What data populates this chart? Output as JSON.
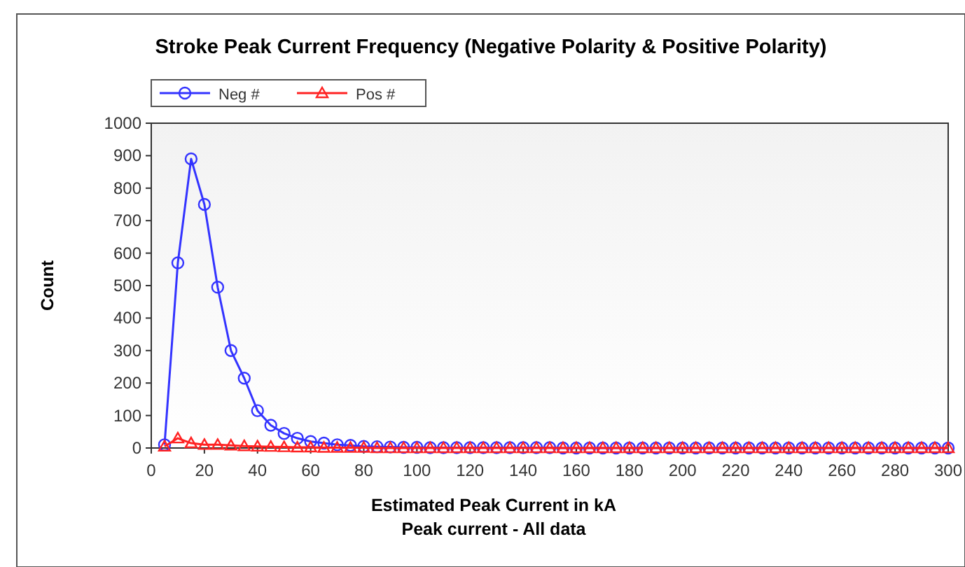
{
  "chart_data": {
    "type": "line",
    "title": "Stroke Peak Current Frequency (Negative Polarity & Positive Polarity)",
    "xlabel": "Estimated Peak Current in kA",
    "ylabel": "Count",
    "annotations": [
      "Peak current - All data"
    ],
    "x": [
      5,
      10,
      15,
      20,
      25,
      30,
      35,
      40,
      45,
      50,
      55,
      60,
      65,
      70,
      75,
      80,
      85,
      90,
      95,
      100,
      105,
      110,
      115,
      120,
      125,
      130,
      135,
      140,
      145,
      150,
      155,
      160,
      165,
      170,
      175,
      180,
      185,
      190,
      195,
      200,
      205,
      210,
      215,
      220,
      225,
      230,
      235,
      240,
      245,
      250,
      255,
      260,
      265,
      270,
      275,
      280,
      285,
      290,
      295,
      300
    ],
    "series": [
      {
        "name": "Neg #",
        "color": "#3333ff",
        "marker": "circle",
        "values": [
          10,
          570,
          890,
          750,
          495,
          300,
          215,
          115,
          70,
          45,
          30,
          20,
          15,
          10,
          8,
          5,
          4,
          3,
          2,
          2,
          1,
          1,
          1,
          1,
          1,
          1,
          1,
          1,
          1,
          1,
          0,
          0,
          0,
          0,
          0,
          0,
          0,
          0,
          0,
          0,
          0,
          0,
          0,
          0,
          0,
          0,
          0,
          0,
          0,
          0,
          0,
          0,
          0,
          0,
          0,
          0,
          0,
          0,
          0,
          0
        ]
      },
      {
        "name": "Pos #",
        "color": "#ff2222",
        "marker": "triangle",
        "values": [
          5,
          30,
          15,
          10,
          10,
          8,
          6,
          5,
          4,
          3,
          2,
          2,
          1,
          1,
          1,
          1,
          0,
          0,
          0,
          0,
          0,
          0,
          0,
          0,
          0,
          0,
          0,
          0,
          0,
          0,
          0,
          0,
          0,
          0,
          0,
          0,
          0,
          0,
          0,
          0,
          0,
          0,
          0,
          0,
          0,
          0,
          0,
          0,
          0,
          0,
          0,
          0,
          0,
          0,
          0,
          0,
          0,
          0,
          0,
          0
        ]
      }
    ],
    "xlim": [
      0,
      300
    ],
    "xticks": [
      0,
      20,
      40,
      60,
      80,
      100,
      120,
      140,
      160,
      180,
      200,
      220,
      240,
      260,
      280,
      300
    ],
    "ylim": [
      0,
      1000
    ],
    "yticks": [
      0,
      100,
      200,
      300,
      400,
      500,
      600,
      700,
      800,
      900,
      1000
    ],
    "grid": false,
    "legend": "top left"
  }
}
